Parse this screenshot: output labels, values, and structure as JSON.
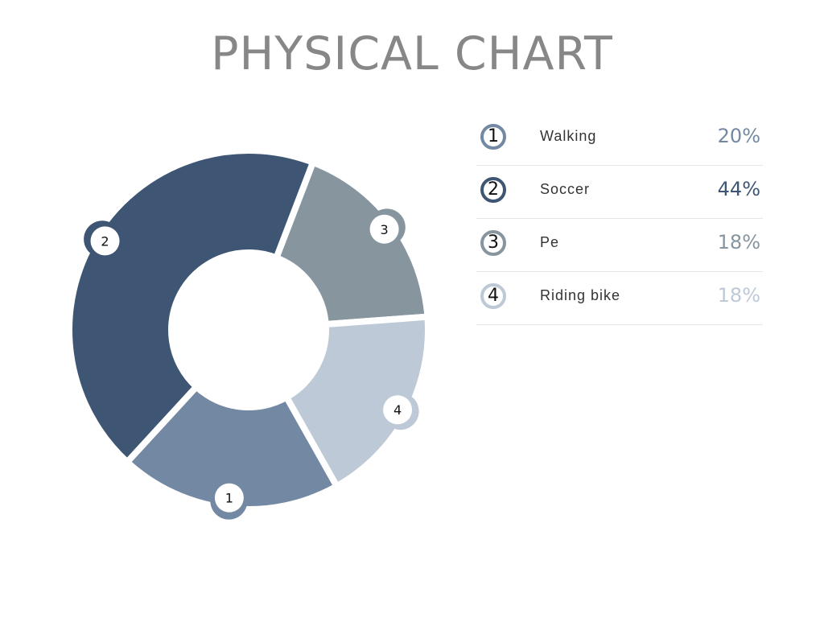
{
  "chart_data": {
    "type": "pie",
    "title": "PHYSICAL CHART",
    "start_angle_deg": 21,
    "slices_clockwise_order": [
      2,
      3,
      0,
      1
    ],
    "slices": [
      {
        "number": "1",
        "label": "Walking",
        "value": 20,
        "value_label": "20%",
        "color": "#7388a3"
      },
      {
        "number": "2",
        "label": "Soccer",
        "value": 44,
        "value_label": "44%",
        "color": "#3e5573"
      },
      {
        "number": "3",
        "label": "Pe",
        "value": 18,
        "value_label": "18%",
        "color": "#87959f"
      },
      {
        "number": "4",
        "label": "Riding bike",
        "value": 18,
        "value_label": "18%",
        "color": "#bdc9d6"
      }
    ],
    "legend": "right"
  }
}
